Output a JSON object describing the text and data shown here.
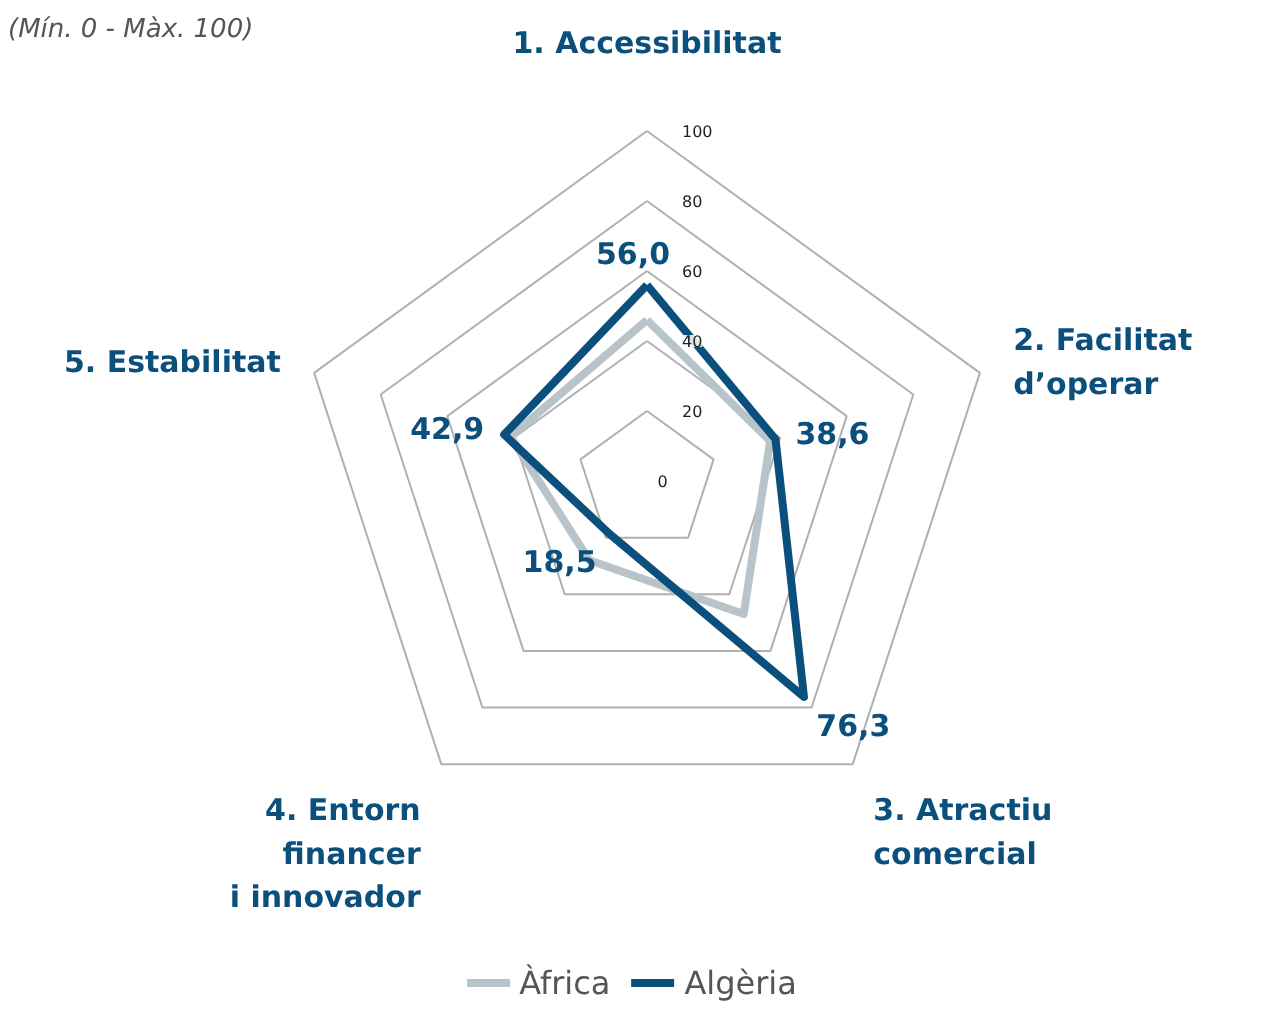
{
  "chart_data": {
    "type": "radar",
    "subtitle": "(Mín. 0 - Màx. 100)",
    "categories": [
      "1. Accessibilitat",
      "2. Facilitat\nd’operar",
      "3. Atractiu\ncomercial",
      "4. Entorn\nfinancer\ni innovador",
      "5. Estabilitat"
    ],
    "ylim": [
      0,
      100
    ],
    "yticks": [
      0,
      20,
      40,
      60,
      80,
      100
    ],
    "legend": "bottom",
    "line_style": "solid",
    "marker": "none",
    "series": [
      {
        "name": "Àfrica",
        "color": "#b8c4ca",
        "values": [
          46,
          37,
          47,
          28,
          41
        ]
      },
      {
        "name": "Algèria",
        "color": "#0b4f7c",
        "values": [
          56.0,
          38.6,
          76.3,
          18.5,
          42.9
        ],
        "value_labels": [
          "56,0",
          "38,6",
          "76,3",
          "18,5",
          "42,9"
        ]
      }
    ]
  }
}
